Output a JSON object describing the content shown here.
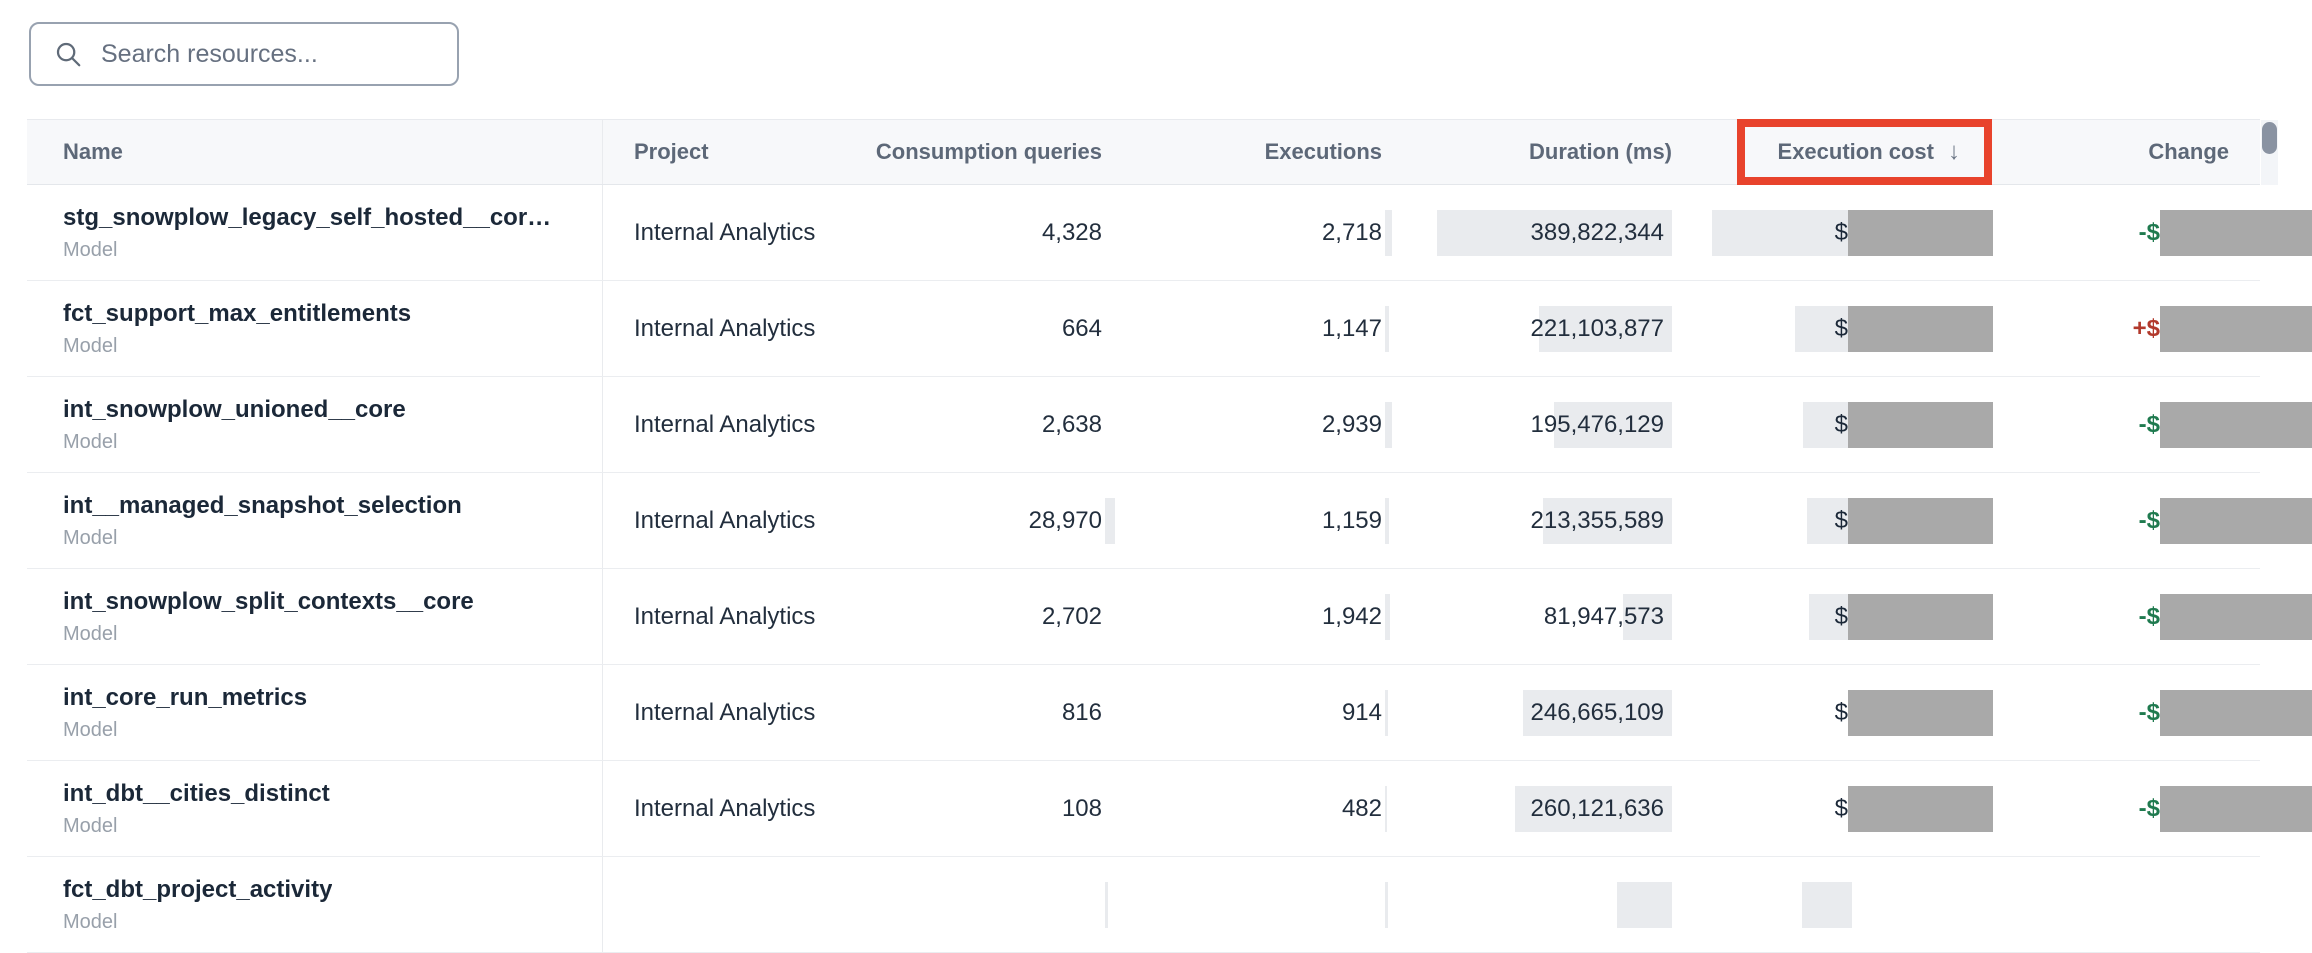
{
  "search": {
    "placeholder": "Search resources..."
  },
  "table": {
    "columns": [
      {
        "label": "Name"
      },
      {
        "label": "Project"
      },
      {
        "label": "Consumption queries"
      },
      {
        "label": "Executions"
      },
      {
        "label": "Duration (ms)"
      },
      {
        "label": "Execution cost",
        "sort": "↓",
        "annotated": true
      },
      {
        "label": "Change"
      }
    ],
    "rows": [
      {
        "name": "stg_snowplow_legacy_self_hosted__cor…",
        "type": "Model",
        "project": "Internal Analytics",
        "consumption_queries": "4,328",
        "executions": "2,718",
        "duration_ms": "389,822,344",
        "execution_cost_prefix": "$",
        "execution_cost_value": "redacted",
        "change_prefix": "-$",
        "change_value": "redacted",
        "change_direction": "decrease",
        "bars": {
          "consumption": 0,
          "executions": 7,
          "duration": 235,
          "cost": 140
        }
      },
      {
        "name": "fct_support_max_entitlements",
        "type": "Model",
        "project": "Internal Analytics",
        "consumption_queries": "664",
        "executions": "1,147",
        "duration_ms": "221,103,877",
        "execution_cost_prefix": "$",
        "execution_cost_value": "redacted",
        "change_prefix": "+$",
        "change_value": "redacted",
        "change_direction": "increase",
        "bars": {
          "consumption": 0,
          "executions": 4,
          "duration": 133,
          "cost": 57
        }
      },
      {
        "name": "int_snowplow_unioned__core",
        "type": "Model",
        "project": "Internal Analytics",
        "consumption_queries": "2,638",
        "executions": "2,939",
        "duration_ms": "195,476,129",
        "execution_cost_prefix": "$",
        "execution_cost_value": "redacted",
        "change_prefix": "-$",
        "change_value": "redacted",
        "change_direction": "decrease",
        "bars": {
          "consumption": 0,
          "executions": 7,
          "duration": 118,
          "cost": 49
        }
      },
      {
        "name": "int__managed_snapshot_selection",
        "type": "Model",
        "project": "Internal Analytics",
        "consumption_queries": "28,970",
        "executions": "1,159",
        "duration_ms": "213,355,589",
        "execution_cost_prefix": "$",
        "execution_cost_value": "redacted",
        "change_prefix": "-$",
        "change_value": "redacted",
        "change_direction": "decrease",
        "bars": {
          "consumption": 10,
          "executions": 4,
          "duration": 129,
          "cost": 45
        }
      },
      {
        "name": "int_snowplow_split_contexts__core",
        "type": "Model",
        "project": "Internal Analytics",
        "consumption_queries": "2,702",
        "executions": "1,942",
        "duration_ms": "81,947,573",
        "execution_cost_prefix": "$",
        "execution_cost_value": "redacted",
        "change_prefix": "-$",
        "change_value": "redacted",
        "change_direction": "decrease",
        "bars": {
          "consumption": 0,
          "executions": 5,
          "duration": 49,
          "cost": 43
        }
      },
      {
        "name": "int_core_run_metrics",
        "type": "Model",
        "project": "Internal Analytics",
        "consumption_queries": "816",
        "executions": "914",
        "duration_ms": "246,665,109",
        "execution_cost_prefix": "$",
        "execution_cost_value": "redacted",
        "change_prefix": "-$",
        "change_value": "redacted",
        "change_direction": "decrease",
        "bars": {
          "consumption": 0,
          "executions": 3,
          "duration": 149,
          "cost": 0
        }
      },
      {
        "name": "int_dbt__cities_distinct",
        "type": "Model",
        "project": "Internal Analytics",
        "consumption_queries": "108",
        "executions": "482",
        "duration_ms": "260,121,636",
        "execution_cost_prefix": "$",
        "execution_cost_value": "redacted",
        "change_prefix": "-$",
        "change_value": "redacted",
        "change_direction": "decrease",
        "bars": {
          "consumption": 0,
          "executions": 2,
          "duration": 157,
          "cost": 0
        }
      },
      {
        "name": "fct_dbt_project_activity",
        "type": "Model",
        "project": "",
        "consumption_queries": "",
        "executions": "",
        "duration_ms": "",
        "execution_cost_prefix": "",
        "execution_cost_value": "",
        "change_prefix": "",
        "change_value": "",
        "change_direction": "",
        "partial": true,
        "bars": {
          "consumption": 3,
          "executions": 3,
          "duration": 55,
          "cost": 50
        }
      }
    ]
  },
  "annotations": {
    "highlight_box_color": "#e8432c",
    "highlighted_column": "Execution cost"
  },
  "colors": {
    "decrease_green": "#1f7a4f",
    "increase_red": "#b2392c",
    "redaction_gray": "#a9a9a9",
    "value_bar_gray": "#e9ebee",
    "header_bg": "#f7f8fa",
    "header_text": "#5d6878",
    "name_text": "#1b2838"
  },
  "scrollbar": {
    "visible": true
  }
}
